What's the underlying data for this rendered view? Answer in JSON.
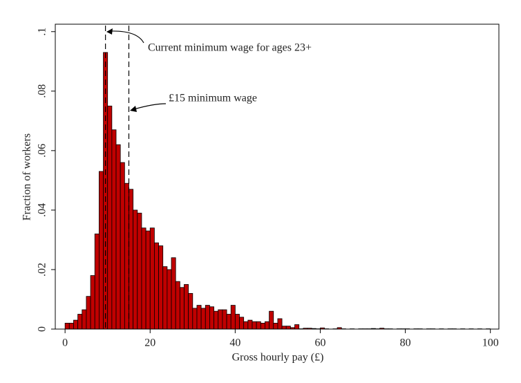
{
  "chart_data": {
    "type": "histogram",
    "xlabel": "Gross hourly pay (£)",
    "ylabel": "Fraction of workers",
    "bins": [
      0,
      1,
      2,
      3,
      4,
      5,
      6,
      7,
      8,
      9,
      10,
      11,
      12,
      13,
      14,
      15,
      16,
      17,
      18,
      19,
      20,
      21,
      22,
      23,
      24,
      25,
      26,
      27,
      28,
      29,
      30,
      31,
      32,
      33,
      34,
      35,
      36,
      37,
      38,
      39,
      40,
      41,
      42,
      43,
      44,
      45,
      46,
      47,
      48,
      49,
      50,
      51,
      52,
      53,
      54,
      55,
      56,
      57,
      58,
      59,
      60,
      61,
      62,
      63,
      64,
      65,
      66,
      67,
      68,
      69,
      70,
      71,
      72,
      73,
      74,
      75,
      76,
      77,
      78,
      79,
      80,
      81,
      82,
      83,
      84,
      85,
      86,
      87,
      88,
      89,
      90,
      91,
      92,
      93,
      94,
      95,
      96,
      97,
      98,
      99,
      100
    ],
    "counts": [
      0.002,
      0.002,
      0.003,
      0.005,
      0.0065,
      0.011,
      0.018,
      0.032,
      0.053,
      0.093,
      0.075,
      0.067,
      0.062,
      0.056,
      0.049,
      0.047,
      0.04,
      0.039,
      0.034,
      0.033,
      0.034,
      0.029,
      0.028,
      0.021,
      0.02,
      0.024,
      0.016,
      0.014,
      0.015,
      0.012,
      0.007,
      0.008,
      0.007,
      0.008,
      0.0075,
      0.006,
      0.0065,
      0.0065,
      0.005,
      0.008,
      0.005,
      0.004,
      0.0025,
      0.003,
      0.0025,
      0.0025,
      0.002,
      0.0025,
      0.006,
      0.002,
      0.0035,
      0.001,
      0.001,
      0.0005,
      0.0015,
      0.0001,
      0.0003,
      0.0003,
      0.0002,
      0.0001,
      0.0004,
      0.0001,
      0,
      0.0001,
      0.0005,
      0.0001,
      0,
      0.0001,
      0,
      0.0001,
      0.0001,
      0.0001,
      0.0002,
      0.0001,
      0.0003,
      0.0001,
      0.0001,
      0,
      0.0001,
      0.0001,
      0.0001,
      0,
      0.0001,
      0.0001,
      0,
      0.0001,
      0.0001,
      0,
      0.0001,
      0,
      0.0001,
      0.0001,
      0,
      0.0001,
      0,
      0.0001,
      0,
      0.0001,
      0,
      0.0001
    ],
    "color": "#c00000",
    "xlim": [
      -2.3,
      102
    ],
    "ylim": [
      0,
      0.1025
    ],
    "xticks": [
      0,
      20,
      40,
      60,
      80,
      100
    ],
    "yticks": [
      0,
      {
        "value": 0.02,
        "label": ".02"
      },
      {
        "value": 0.04,
        "label": ".04"
      },
      {
        "value": 0.06,
        "label": ".06"
      },
      {
        "value": 0.08,
        "label": ".08"
      },
      {
        "value": 0.1,
        "label": ".1"
      }
    ],
    "reference_lines": [
      9.5,
      15
    ],
    "annotations": [
      "Current minimum wage for ages 23+",
      "£15 minimum wage"
    ]
  }
}
